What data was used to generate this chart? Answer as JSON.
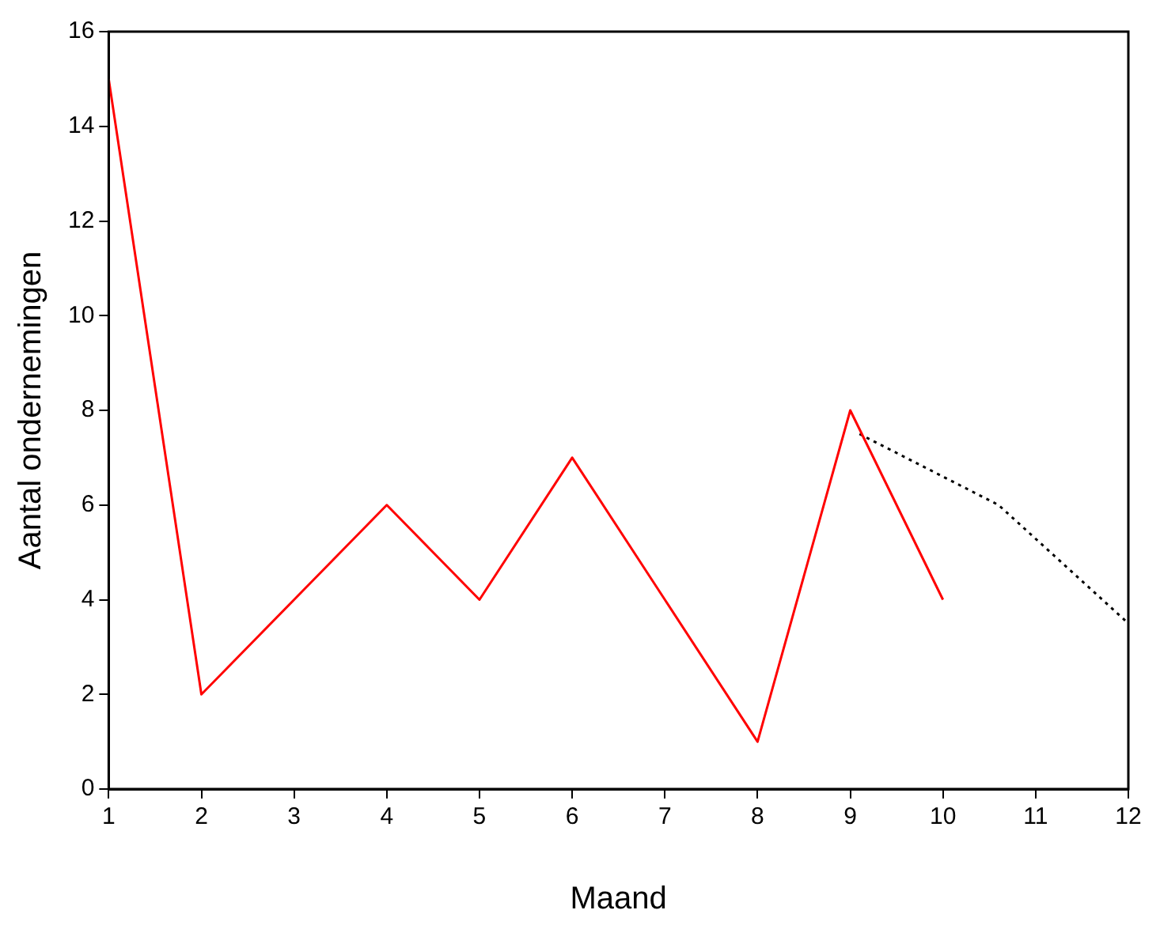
{
  "chart_data": {
    "type": "line",
    "xlabel": "Maand",
    "ylabel": "Aantal ondernemingen",
    "xlim": [
      1,
      12
    ],
    "xticks": [
      1,
      2,
      3,
      4,
      5,
      6,
      7,
      8,
      9,
      10,
      11,
      12
    ],
    "ylim": [
      0,
      16
    ],
    "yticks": [
      0,
      2,
      4,
      6,
      8,
      10,
      12,
      14,
      16
    ],
    "grid": false,
    "legend": false,
    "marker": "none",
    "series": [
      {
        "color": "#ff0000",
        "line_style": "solid",
        "x": [
          1,
          2,
          3,
          4,
          5,
          6,
          7,
          8,
          9,
          10
        ],
        "values": [
          15,
          2,
          4,
          6,
          4,
          7,
          4,
          1,
          8,
          4
        ]
      },
      {
        "color": "#000000",
        "line_style": "dotted",
        "x": [
          9.1,
          10.6,
          12
        ],
        "values": [
          7.5,
          6.0,
          3.5
        ]
      }
    ]
  }
}
